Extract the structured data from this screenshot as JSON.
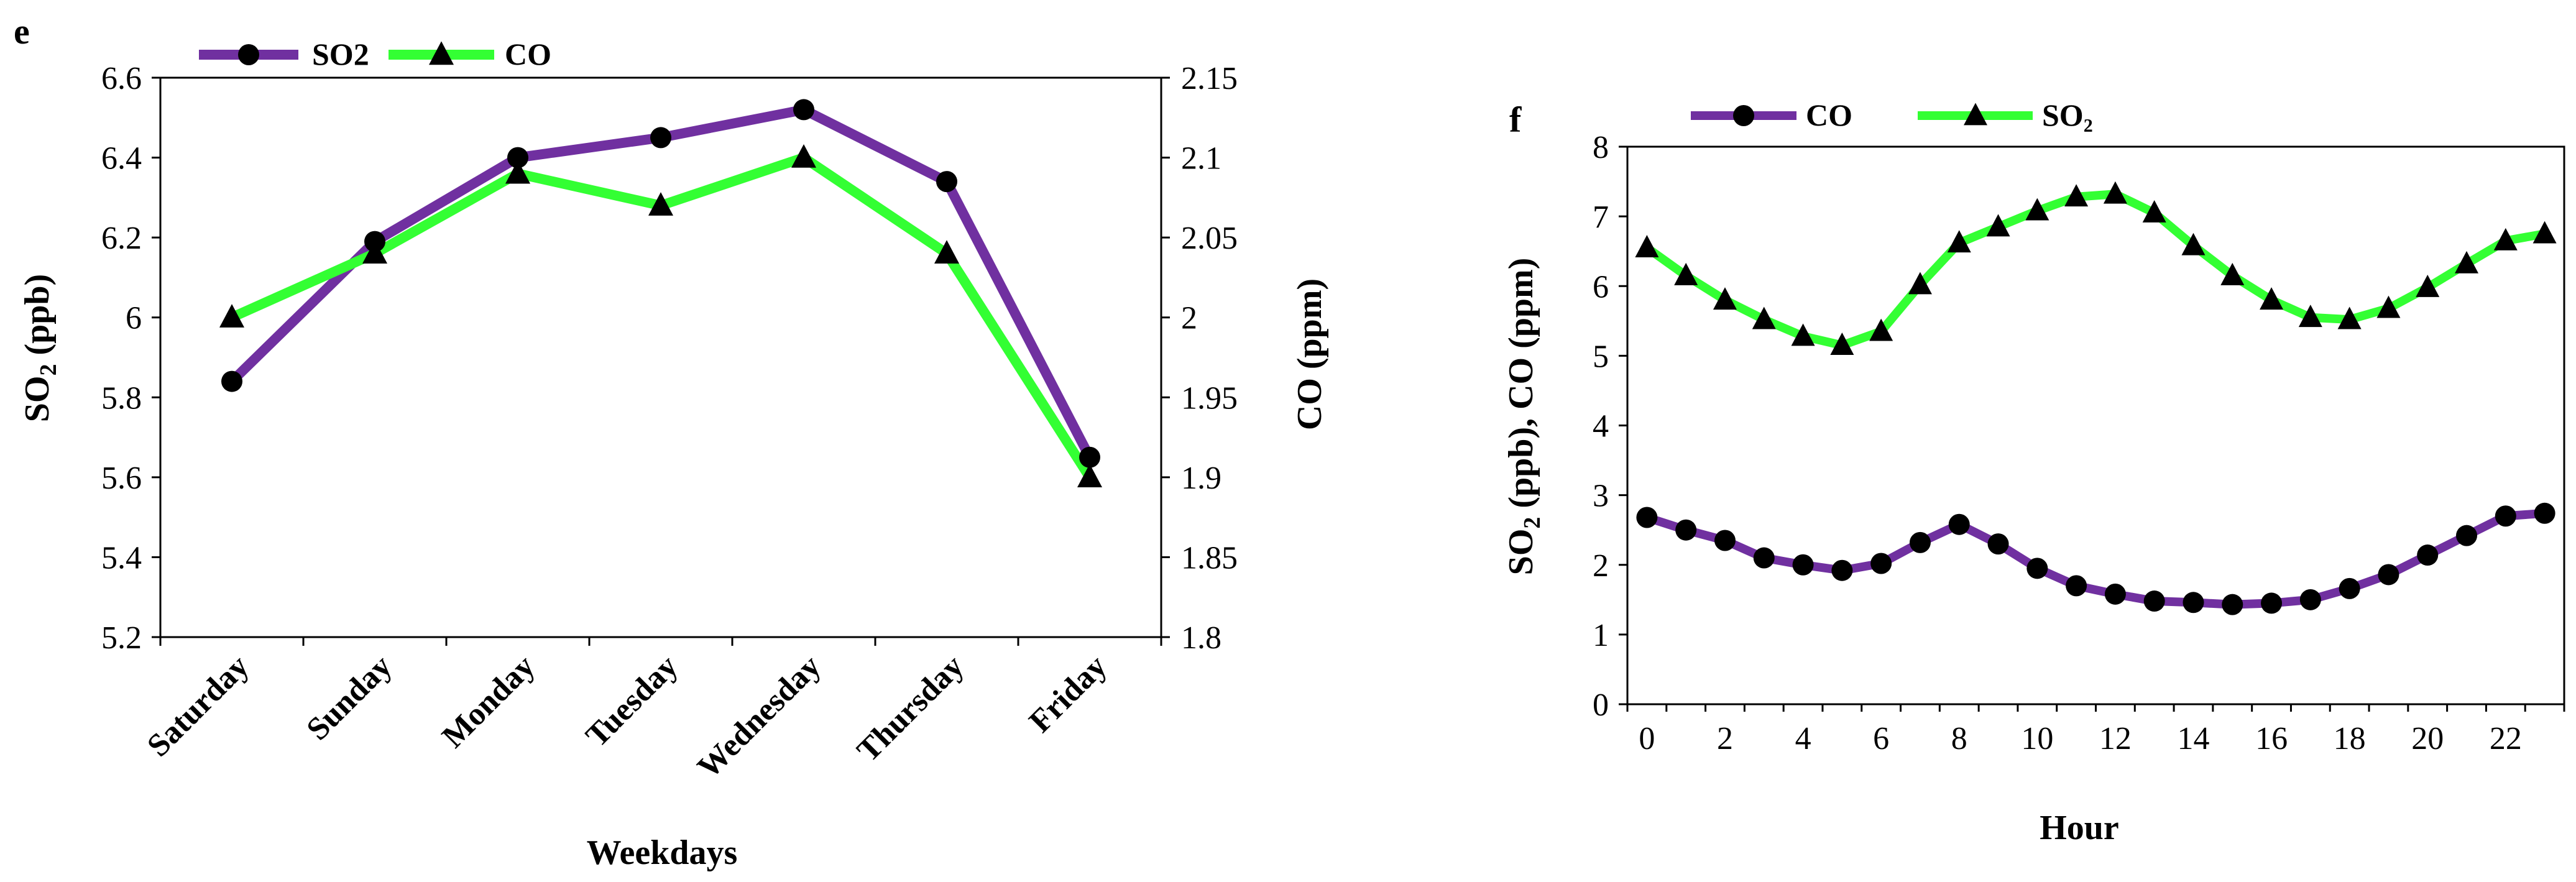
{
  "colors": {
    "purple": "#7030A0",
    "green": "#33FF33",
    "marker": "#000000"
  },
  "chart_data": [
    {
      "panel_label": "e",
      "type": "line",
      "xlabel": "Weekdays",
      "categories": [
        "Saturday",
        "Sunday",
        "Monday",
        "Tuesday",
        "Wednesday",
        "Thursday",
        "Friday"
      ],
      "y_left": {
        "label_main": "SO",
        "label_sub": "2",
        "label_tail": " (ppb)",
        "ylim": [
          5.2,
          6.6
        ],
        "ticks": [
          "5.2",
          "5.4",
          "5.6",
          "5.8",
          "6",
          "6.2",
          "6.4",
          "6.6"
        ]
      },
      "y_right": {
        "label": "CO (ppm)",
        "ylim": [
          1.8,
          2.15
        ],
        "ticks": [
          "1.8",
          "1.85",
          "1.9",
          "1.95",
          "2",
          "2.05",
          "2.1",
          "2.15"
        ]
      },
      "series": [
        {
          "name": "SO2",
          "axis": "left",
          "color": "#7030A0",
          "marker": "circle",
          "values": [
            5.84,
            6.19,
            6.4,
            6.45,
            6.52,
            6.34,
            5.65
          ]
        },
        {
          "name": "CO",
          "axis": "right",
          "color": "#33FF33",
          "marker": "triangle",
          "values": [
            2.0,
            2.04,
            2.09,
            2.07,
            2.1,
            2.04,
            1.9
          ]
        }
      ],
      "legend": [
        "SO2",
        "CO"
      ]
    },
    {
      "panel_label": "f",
      "type": "line",
      "xlabel": "Hour",
      "x": [
        0,
        1,
        2,
        3,
        4,
        5,
        6,
        7,
        8,
        9,
        10,
        11,
        12,
        13,
        14,
        15,
        16,
        17,
        18,
        19,
        20,
        21,
        22,
        23
      ],
      "x_ticks": [
        "0",
        "2",
        "4",
        "6",
        "8",
        "10",
        "12",
        "14",
        "16",
        "18",
        "20",
        "22"
      ],
      "y": {
        "label_main": "SO",
        "label_sub": "2",
        "label_tail": " (ppb), CO (ppm)",
        "ylim": [
          0,
          8
        ],
        "ticks": [
          "0",
          "1",
          "2",
          "3",
          "4",
          "5",
          "6",
          "7",
          "8"
        ]
      },
      "series": [
        {
          "name": "CO",
          "color": "#7030A0",
          "marker": "circle",
          "values": [
            2.68,
            2.5,
            2.35,
            2.1,
            2.0,
            1.92,
            2.02,
            2.32,
            2.58,
            2.3,
            1.95,
            1.7,
            1.58,
            1.48,
            1.46,
            1.43,
            1.45,
            1.5,
            1.66,
            1.86,
            2.14,
            2.42,
            2.7,
            2.74
          ]
        },
        {
          "name": "SO₂",
          "color": "#33FF33",
          "marker": "triangle",
          "values": [
            6.55,
            6.15,
            5.8,
            5.52,
            5.28,
            5.15,
            5.35,
            6.02,
            6.62,
            6.85,
            7.08,
            7.28,
            7.32,
            7.05,
            6.58,
            6.15,
            5.8,
            5.55,
            5.52,
            5.68,
            5.98,
            6.32,
            6.65,
            6.75
          ]
        }
      ],
      "legend": [
        "CO",
        "SO₂"
      ]
    }
  ]
}
